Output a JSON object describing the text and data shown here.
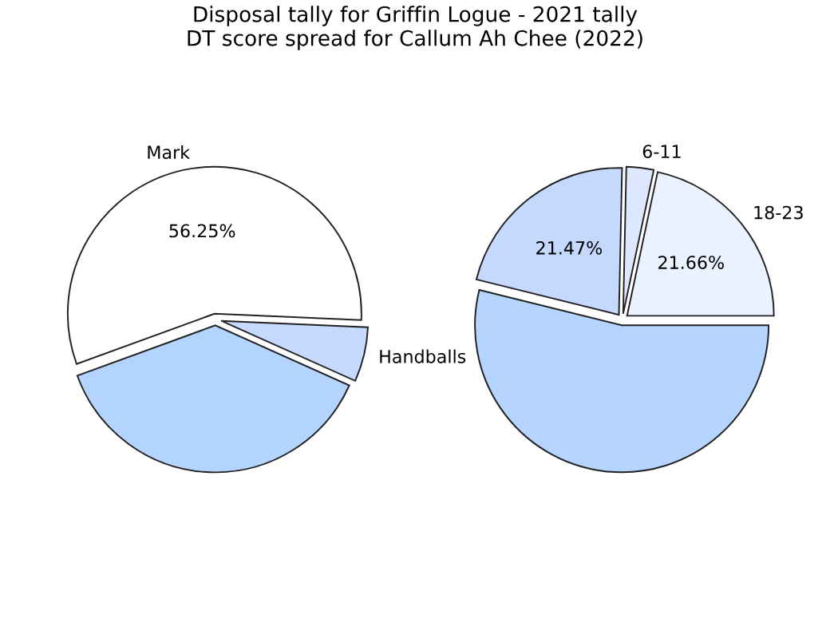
{
  "chart_data": [
    {
      "type": "pie",
      "title": "Disposal tally for Griffin Logue - 2021 tally",
      "categories": [
        "Mark",
        "Handballs",
        null
      ],
      "values": [
        56.25,
        6,
        37.75
      ],
      "colors": [
        "#ffffff",
        "#c6d9ff",
        "#b3d4ff"
      ],
      "value_labels": [
        "56.25%",
        null,
        null
      ]
    },
    {
      "type": "pie",
      "title": "DT score spread for Callum Ah Chee (2022)",
      "categories": [
        "18-23",
        "6-11",
        null,
        null
      ],
      "values": [
        21.66,
        3,
        21.47,
        53.87
      ],
      "colors": [
        "#eaf1ff",
        "#dde8ff",
        "#c5d9ff",
        "#b5d5ff"
      ],
      "value_labels": [
        "21.66%",
        null,
        "21.47%",
        null
      ]
    }
  ]
}
